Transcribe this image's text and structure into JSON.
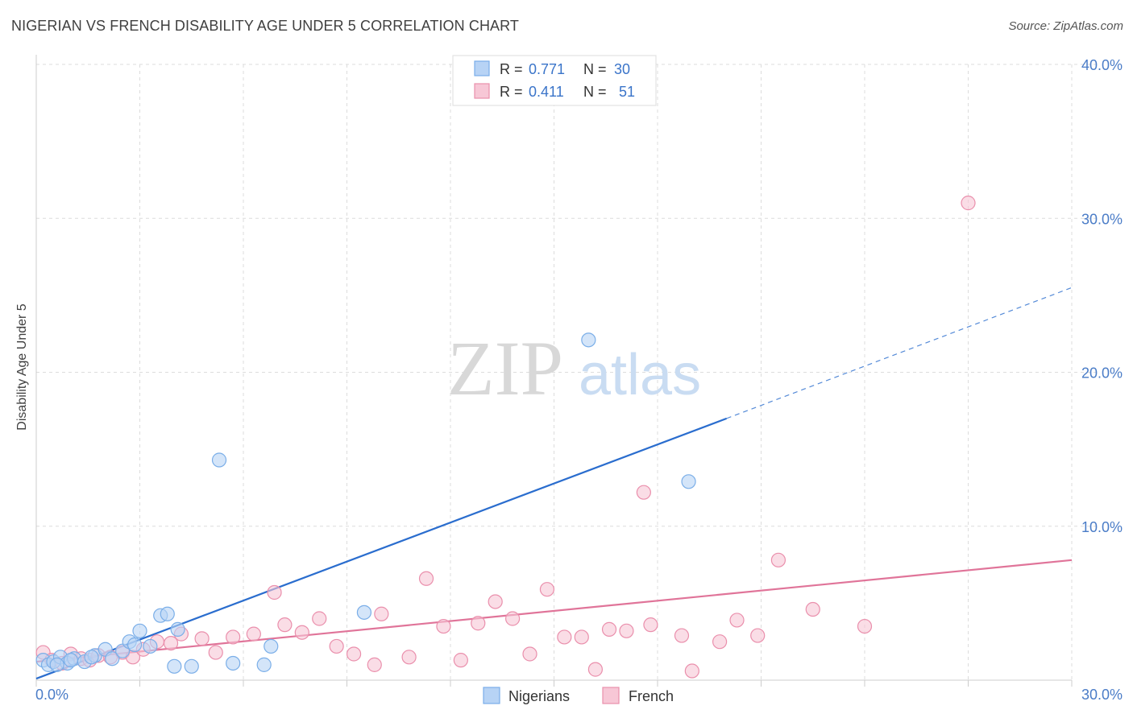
{
  "title": "NIGERIAN VS FRENCH DISABILITY AGE UNDER 5 CORRELATION CHART",
  "source": "Source: ZipAtlas.com",
  "watermark": {
    "zip": "ZIP",
    "atlas": "atlas"
  },
  "chart_data": {
    "type": "scatter",
    "title": "NIGERIAN VS FRENCH DISABILITY AGE UNDER 5 CORRELATION CHART",
    "xlabel": "",
    "ylabel": "Disability Age Under 5",
    "xlim": [
      0,
      30
    ],
    "ylim": [
      0,
      40
    ],
    "x_tick_labels": [
      "0.0%",
      "30.0%"
    ],
    "y_ticks": [
      10,
      20,
      30,
      40
    ],
    "y_tick_labels": [
      "10.0%",
      "20.0%",
      "30.0%",
      "40.0%"
    ],
    "grid": true,
    "legend": [
      {
        "name": "Nigerians",
        "r_label": "R =",
        "r_value": "0.771",
        "n_label": "N =",
        "n_value": "30",
        "color": "#7aaee8",
        "fill": "#b7d3f5"
      },
      {
        "name": "French",
        "r_label": "R =",
        "r_value": "0.411",
        "n_label": "N =",
        "n_value": "51",
        "color": "#ea8fac",
        "fill": "#f7c7d6"
      }
    ],
    "series": [
      {
        "name": "Nigerians",
        "color": "#7aaee8",
        "fill": "#b7d3f5",
        "trend_color": "#2a6dce",
        "trend": {
          "x0": 0,
          "y0": 0.1,
          "x1": 20,
          "y1": 17.0,
          "dash_to_x": 30,
          "dash_to_y": 25.5
        },
        "points": [
          [
            0.2,
            1.3
          ],
          [
            0.35,
            1.0
          ],
          [
            0.5,
            1.2
          ],
          [
            0.7,
            1.5
          ],
          [
            0.9,
            1.1
          ],
          [
            1.1,
            1.4
          ],
          [
            1.4,
            1.2
          ],
          [
            1.7,
            1.6
          ],
          [
            2.0,
            2.0
          ],
          [
            2.2,
            1.4
          ],
          [
            2.5,
            1.9
          ],
          [
            2.7,
            2.5
          ],
          [
            2.85,
            2.3
          ],
          [
            3.0,
            3.2
          ],
          [
            3.3,
            2.2
          ],
          [
            3.6,
            4.2
          ],
          [
            3.8,
            4.3
          ],
          [
            4.1,
            3.3
          ],
          [
            4.0,
            0.9
          ],
          [
            4.5,
            0.9
          ],
          [
            5.3,
            14.3
          ],
          [
            5.7,
            1.1
          ],
          [
            6.6,
            1.0
          ],
          [
            6.8,
            2.2
          ],
          [
            9.5,
            4.4
          ],
          [
            16.0,
            22.1
          ],
          [
            18.9,
            12.9
          ],
          [
            0.6,
            1.0
          ],
          [
            1.6,
            1.5
          ],
          [
            1.0,
            1.3
          ]
        ]
      },
      {
        "name": "French",
        "color": "#ea8fac",
        "fill": "#f7c7d6",
        "trend_color": "#e07499",
        "trend": {
          "x0": 0,
          "y0": 1.2,
          "x1": 30,
          "y1": 7.8
        },
        "points": [
          [
            0.2,
            1.8
          ],
          [
            0.45,
            1.3
          ],
          [
            0.75,
            1.1
          ],
          [
            1.0,
            1.7
          ],
          [
            1.3,
            1.4
          ],
          [
            1.55,
            1.3
          ],
          [
            1.8,
            1.6
          ],
          [
            2.15,
            1.5
          ],
          [
            2.5,
            1.8
          ],
          [
            2.8,
            1.5
          ],
          [
            3.1,
            2.0
          ],
          [
            3.5,
            2.5
          ],
          [
            3.9,
            2.4
          ],
          [
            4.2,
            3.0
          ],
          [
            4.8,
            2.7
          ],
          [
            5.2,
            1.8
          ],
          [
            5.7,
            2.8
          ],
          [
            6.3,
            3.0
          ],
          [
            6.9,
            5.7
          ],
          [
            7.2,
            3.6
          ],
          [
            7.7,
            3.1
          ],
          [
            8.2,
            4.0
          ],
          [
            8.7,
            2.2
          ],
          [
            9.2,
            1.7
          ],
          [
            9.8,
            1.0
          ],
          [
            10.0,
            4.3
          ],
          [
            10.8,
            1.5
          ],
          [
            11.3,
            6.6
          ],
          [
            11.8,
            3.5
          ],
          [
            12.3,
            1.3
          ],
          [
            12.8,
            3.7
          ],
          [
            13.3,
            5.1
          ],
          [
            13.8,
            4.0
          ],
          [
            14.3,
            1.7
          ],
          [
            14.8,
            5.9
          ],
          [
            15.3,
            2.8
          ],
          [
            15.8,
            2.8
          ],
          [
            16.2,
            0.7
          ],
          [
            16.6,
            3.3
          ],
          [
            17.1,
            3.2
          ],
          [
            17.6,
            12.2
          ],
          [
            17.8,
            3.6
          ],
          [
            18.7,
            2.9
          ],
          [
            19.0,
            0.6
          ],
          [
            19.8,
            2.5
          ],
          [
            20.3,
            3.9
          ],
          [
            20.9,
            2.9
          ],
          [
            21.5,
            7.8
          ],
          [
            22.5,
            4.6
          ],
          [
            24.0,
            3.5
          ],
          [
            27.0,
            31.0
          ]
        ]
      }
    ]
  }
}
